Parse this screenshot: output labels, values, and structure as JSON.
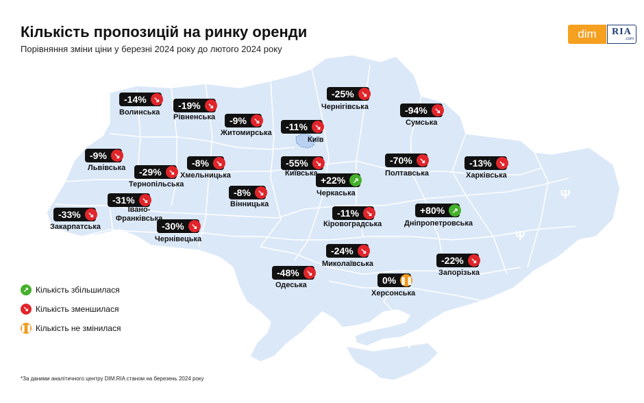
{
  "title": "Кількість пропозицій на ринку оренди",
  "subtitle": "Порівняння зміни ціни у березні 2024 року до лютого 2024 року",
  "logo": {
    "dim": "dim",
    "ria": "RIA",
    "ria_sub": ".com"
  },
  "colors": {
    "map": "#dbe8f8",
    "decrease": "#e0262b",
    "increase": "#45b02b",
    "unchanged": "#f29a1f"
  },
  "regions": [
    {
      "name": "Волинська",
      "change": "-14%",
      "trend": "down"
    },
    {
      "name": "Рівненська",
      "change": "-19%",
      "trend": "down"
    },
    {
      "name": "Житомирська",
      "change": "-9%",
      "trend": "down"
    },
    {
      "name": "Київ",
      "change": "-11%",
      "trend": "down"
    },
    {
      "name": "Чернігівська",
      "change": "-25%",
      "trend": "down"
    },
    {
      "name": "Сумська",
      "change": "-94%",
      "trend": "down"
    },
    {
      "name": "Львівська",
      "change": "-9%",
      "trend": "down"
    },
    {
      "name": "Тернопільська",
      "change": "-29%",
      "trend": "down"
    },
    {
      "name": "Хмельницька",
      "change": "-8%",
      "trend": "down"
    },
    {
      "name": "Київська",
      "change": "-55%",
      "trend": "down"
    },
    {
      "name": "Полтавська",
      "change": "-70%",
      "trend": "down"
    },
    {
      "name": "Харківська",
      "change": "-13%",
      "trend": "down"
    },
    {
      "name": "Черкаська",
      "change": "+22%",
      "trend": "up"
    },
    {
      "name": "Вінницька",
      "change": "-8%",
      "trend": "down"
    },
    {
      "name": "Івано-Франківська",
      "change": "-31%",
      "trend": "down"
    },
    {
      "name": "Закарпатська",
      "change": "-33%",
      "trend": "down"
    },
    {
      "name": "Чернівецька",
      "change": "-30%",
      "trend": "down"
    },
    {
      "name": "Кіровоградська",
      "change": "-11%",
      "trend": "down"
    },
    {
      "name": "Дніпропетровська",
      "change": "+80%",
      "trend": "up"
    },
    {
      "name": "Миколаївська",
      "change": "-24%",
      "trend": "down"
    },
    {
      "name": "Запорізька",
      "change": "-22%",
      "trend": "down"
    },
    {
      "name": "Одеська",
      "change": "-48%",
      "trend": "down"
    },
    {
      "name": "Херсонська",
      "change": "0%",
      "trend": "same"
    }
  ],
  "legend": [
    {
      "label": "Кількість збільшилася",
      "trend": "up"
    },
    {
      "label": "Кількість зменшилася",
      "trend": "down"
    },
    {
      "label": "Кількість не змінилася",
      "trend": "same"
    }
  ],
  "icons": {
    "up": "arrow-up-right-icon",
    "down": "arrow-down-right-icon",
    "same": "pause-icon",
    "emblem": "trident-icon"
  },
  "footnote": "*За даними аналітичного центру DIM.RIA станом на березень 2024 року"
}
